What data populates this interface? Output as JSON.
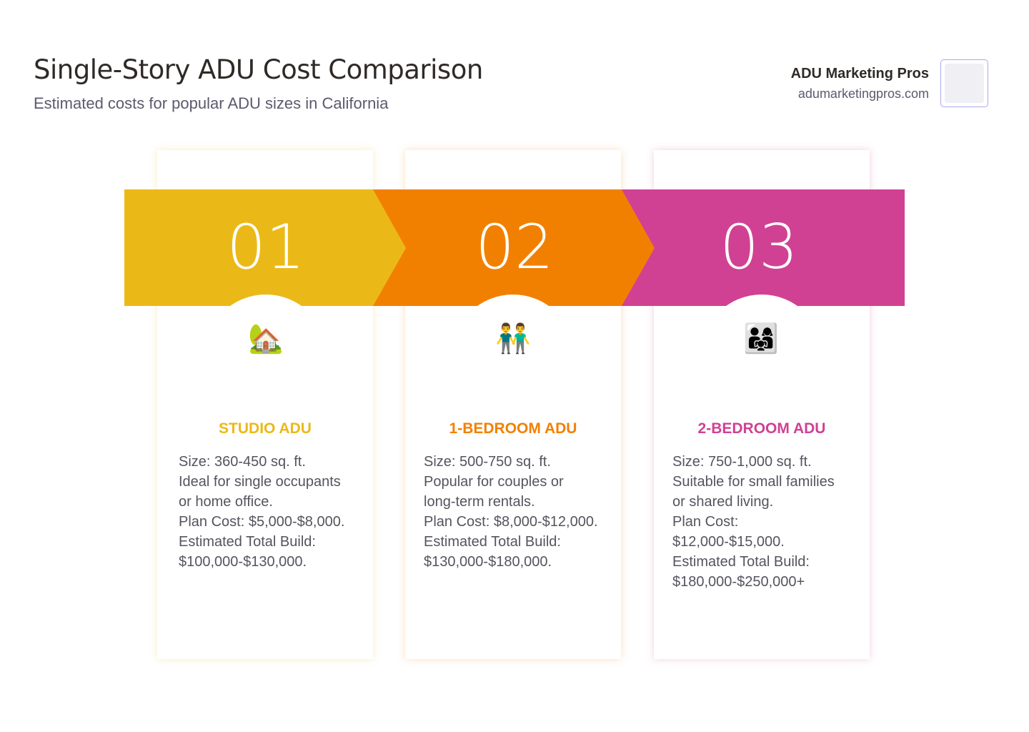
{
  "header": {
    "title": "Single-Story ADU Cost Comparison",
    "subtitle": "Estimated costs for popular ADU sizes in California"
  },
  "brand": {
    "name": "ADU Marketing Pros",
    "url": "adumarketingpros.com"
  },
  "colors": {
    "step1": "#ebb917",
    "step2": "#f28000",
    "step3": "#d14193"
  },
  "steps": [
    {
      "number": "01",
      "icon": "house-with-garden-icon",
      "emoji": "🏡",
      "title": "STUDIO ADU",
      "lines": [
        "Size: 360-450 sq. ft.",
        "Ideal for single occupants",
        "or home office.",
        "Plan Cost: $5,000-$8,000.",
        "Estimated Total Build:",
        "$100,000-$130,000."
      ]
    },
    {
      "number": "02",
      "icon": "two-men-holding-hands-icon",
      "emoji": "👬",
      "title": "1-BEDROOM ADU",
      "lines": [
        "Size: 500-750 sq. ft.",
        "Popular for couples or",
        "long-term rentals.",
        "Plan Cost: $8,000-$12,000.",
        "Estimated Total Build:",
        "$130,000-$180,000."
      ]
    },
    {
      "number": "03",
      "icon": "family-icon",
      "emoji": "👨‍👩‍👧",
      "title": "2-BEDROOM ADU",
      "lines": [
        "Size: 750-1,000 sq. ft.",
        "Suitable for small families",
        "or shared living.",
        "Plan Cost:",
        "$12,000-$15,000.",
        "Estimated Total Build:",
        "$180,000-$250,000+"
      ]
    }
  ]
}
